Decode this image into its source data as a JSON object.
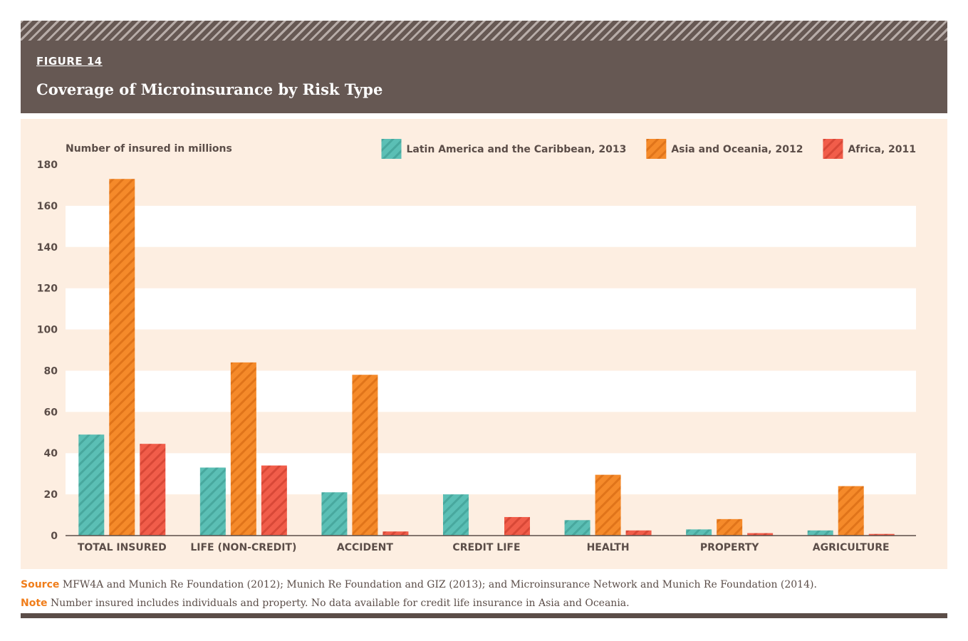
{
  "figure": {
    "label": "FIGURE 14",
    "title": "Coverage of Microinsurance by Risk Type"
  },
  "chart_data": {
    "type": "bar",
    "ylabel": "Number of insured in millions",
    "ylim": [
      0,
      180
    ],
    "yticks": [
      "0",
      "20",
      "40",
      "60",
      "80",
      "100",
      "120",
      "140",
      "160",
      "180"
    ],
    "categories": [
      "TOTAL INSURED",
      "LIFE (NON-CREDIT)",
      "ACCIDENT",
      "CREDIT LIFE",
      "HEALTH",
      "PROPERTY",
      "AGRICULTURE"
    ],
    "series": [
      {
        "name": "Latin America and the Caribbean, 2013",
        "color": "#5bbfb5",
        "values": [
          49,
          33,
          21,
          20,
          7.5,
          3,
          2.5
        ]
      },
      {
        "name": "Asia and Oceania, 2012",
        "color": "#f58a2a",
        "values": [
          173,
          84,
          78,
          null,
          29.5,
          8,
          24
        ]
      },
      {
        "name": "Africa, 2011",
        "color": "#f15d4a",
        "values": [
          44.5,
          34,
          2,
          9,
          2.5,
          1.2,
          0.8
        ]
      }
    ],
    "legend_position": "top-right"
  },
  "notes": {
    "source_label": "Source",
    "source_text": " MFW4A and Munich Re Foundation (2012); Munich Re Foundation and GIZ (2013); and Microinsurance Network and Munich Re Foundation (2014).",
    "note_label": "Note",
    "note_text": " Number insured includes individuals and property. No data available for credit life insurance in Asia and Oceania."
  }
}
